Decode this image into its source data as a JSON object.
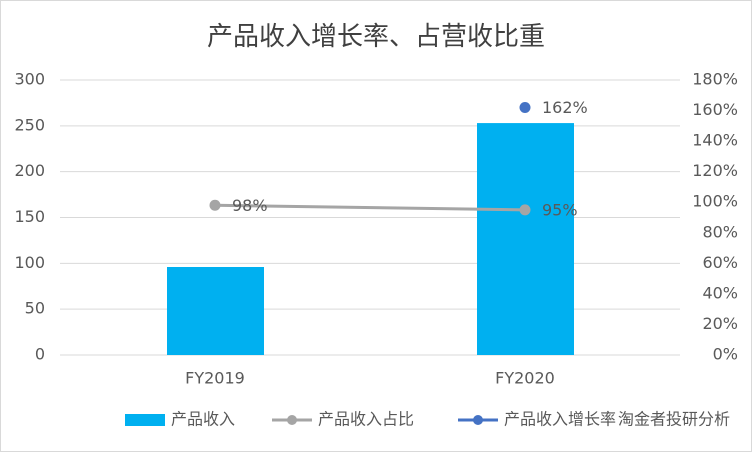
{
  "chart_data": {
    "type": "bar",
    "title": "产品收入增长率、占营收比重",
    "categories": [
      "FY2019",
      "FY2020"
    ],
    "series": [
      {
        "name": "产品收入",
        "type": "bar",
        "color": "#00b0f0",
        "values": [
          96,
          253
        ]
      },
      {
        "name": "产品收入占比",
        "type": "line",
        "color": "#a5a5a5",
        "axis": "y2",
        "values": [
          98,
          95
        ],
        "value_labels": [
          "98%",
          "95%"
        ]
      },
      {
        "name": "产品收入增长率",
        "type": "scatter",
        "color": "#4472c4",
        "axis": "y2",
        "values": [
          null,
          162
        ],
        "value_labels": [
          null,
          "162%"
        ]
      }
    ],
    "ylim": [
      0,
      300
    ],
    "yticks": [
      0,
      50,
      100,
      150,
      200,
      250,
      300
    ],
    "y2lim": [
      0,
      180
    ],
    "y2ticks": [
      {
        "value": 0,
        "label": "0%"
      },
      {
        "value": 20,
        "label": "20%"
      },
      {
        "value": 40,
        "label": "40%"
      },
      {
        "value": 60,
        "label": "60%"
      },
      {
        "value": 80,
        "label": "80%"
      },
      {
        "value": 100,
        "label": "100%"
      },
      {
        "value": 120,
        "label": "120%"
      },
      {
        "value": 140,
        "label": "140%"
      },
      {
        "value": 160,
        "label": "160%"
      },
      {
        "value": 180,
        "label": "180%"
      }
    ],
    "grid": true,
    "legend": "bottom",
    "watermark": "淘金者投研分析"
  }
}
